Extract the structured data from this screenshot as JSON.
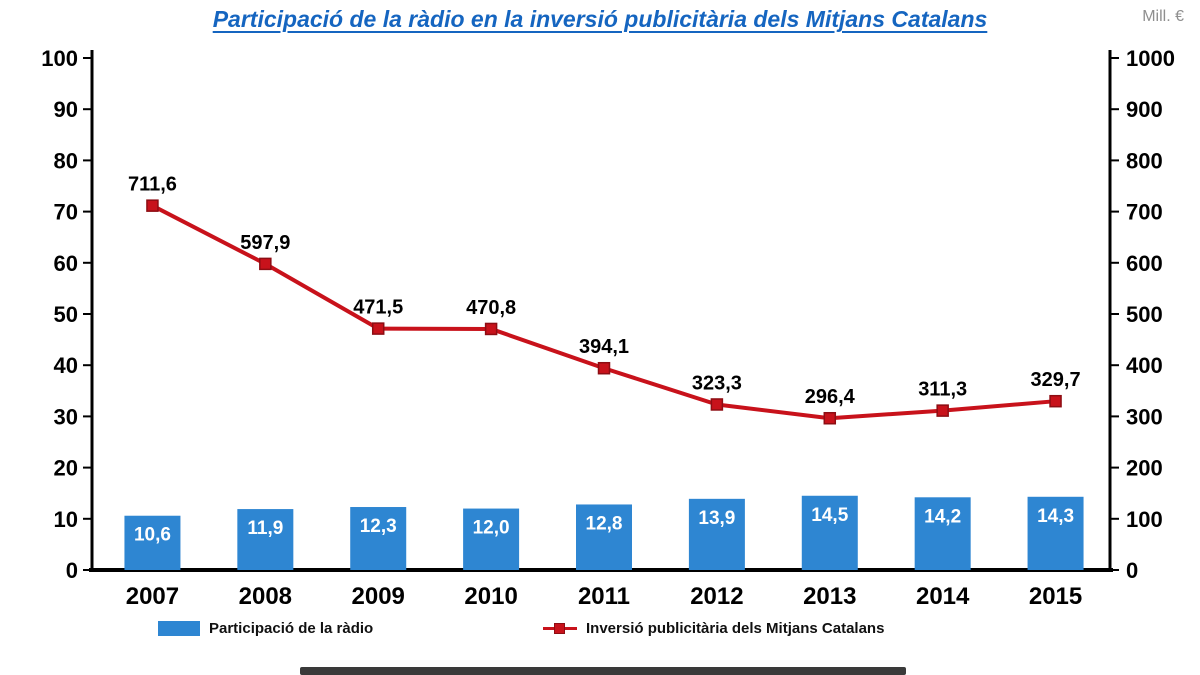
{
  "header": {
    "title": "Participació de la ràdio en la inversió publicitària dels Mitjans Catalans",
    "unit_label": "Mill. €"
  },
  "chart_data": {
    "type": "combo-bar-line",
    "categories": [
      "2007",
      "2008",
      "2009",
      "2010",
      "2011",
      "2012",
      "2013",
      "2014",
      "2015"
    ],
    "series": [
      {
        "name": "Participació de la ràdio",
        "type": "bar",
        "axis": "left",
        "values": [
          10.6,
          11.9,
          12.3,
          12.0,
          12.8,
          13.9,
          14.5,
          14.2,
          14.3
        ],
        "labels": [
          "10,6",
          "11,9",
          "12,3",
          "12,0",
          "12,8",
          "13,9",
          "14,5",
          "14,2",
          "14,3"
        ],
        "color": "#2E86D2",
        "label_color": "#FFFFFF"
      },
      {
        "name": "Inversió publicitària dels Mitjans Catalans",
        "type": "line",
        "axis": "right",
        "marker": "square",
        "values": [
          711.6,
          597.9,
          471.5,
          470.8,
          394.1,
          323.3,
          296.4,
          311.3,
          329.7
        ],
        "labels": [
          "711,6",
          "597,9",
          "471,5",
          "470,8",
          "394,1",
          "323,3",
          "296,4",
          "311,3",
          "329,7"
        ],
        "color": "#C8121B",
        "label_color": "#000000"
      }
    ],
    "left_axis": {
      "min": 0,
      "max": 100,
      "step": 10,
      "tick_labels": [
        "0",
        "10",
        "20",
        "30",
        "40",
        "50",
        "60",
        "70",
        "80",
        "90",
        "100"
      ]
    },
    "right_axis": {
      "min": 0,
      "max": 1000,
      "step": 100,
      "tick_labels": [
        "0",
        "100",
        "200",
        "300",
        "400",
        "500",
        "600",
        "700",
        "800",
        "900",
        "1000"
      ],
      "title": "Mill. €"
    },
    "grid": false,
    "legend_position": "bottom"
  }
}
